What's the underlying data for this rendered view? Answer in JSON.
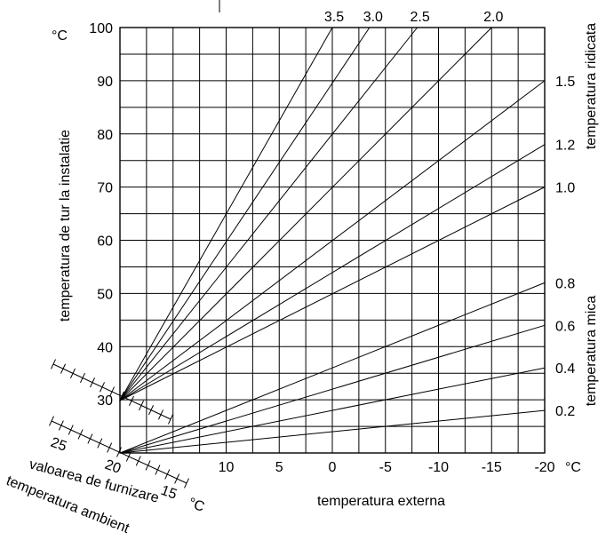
{
  "chart_data": {
    "type": "line",
    "xlabel": "temperatura externa",
    "ylabel": "temperatura de tur la instalatie",
    "x_unit": "°C",
    "y_unit": "°C",
    "x_ticks": [
      10,
      5,
      0,
      -5,
      -10,
      -15,
      -20
    ],
    "y_ticks": [
      30,
      40,
      50,
      60,
      70,
      80,
      90,
      100
    ],
    "x_tick_labels": [
      "10",
      "5",
      "0",
      "-5",
      "-10",
      "-15",
      "-20"
    ],
    "y_tick_labels": [
      "30",
      "40",
      "50",
      "60",
      "70",
      "80",
      "90",
      "100"
    ],
    "xlim": [
      20,
      -20
    ],
    "ylim": [
      20,
      100
    ],
    "grid": true,
    "series": [
      {
        "name": "3.5",
        "points": [
          [
            20,
            20
          ],
          [
            0,
            100
          ]
        ],
        "label_side": "top"
      },
      {
        "name": "3.0",
        "points": [
          [
            20,
            20
          ],
          [
            -3.5,
            100
          ]
        ],
        "label_side": "top"
      },
      {
        "name": "2.5",
        "points": [
          [
            20,
            20
          ],
          [
            -8,
            100
          ]
        ],
        "label_side": "top"
      },
      {
        "name": "2.0",
        "points": [
          [
            20,
            20
          ],
          [
            -15,
            100
          ]
        ],
        "label_side": "top"
      },
      {
        "name": "1.5",
        "points": [
          [
            20,
            20
          ],
          [
            -20,
            90
          ]
        ],
        "label_side": "right"
      },
      {
        "name": "1.2",
        "points": [
          [
            20,
            20
          ],
          [
            -20,
            78
          ]
        ],
        "label_side": "right"
      },
      {
        "name": "1.0",
        "points": [
          [
            20,
            20
          ],
          [
            -20,
            70
          ]
        ],
        "label_side": "right"
      },
      {
        "name": "0.8",
        "points": [
          [
            20,
            20
          ],
          [
            -20,
            52
          ]
        ],
        "label_side": "right"
      },
      {
        "name": "0.6",
        "points": [
          [
            20,
            20
          ],
          [
            -20,
            44
          ]
        ],
        "label_side": "right"
      },
      {
        "name": "0.4",
        "points": [
          [
            20,
            20
          ],
          [
            -20,
            36
          ]
        ],
        "label_side": "right"
      },
      {
        "name": "0.2",
        "points": [
          [
            20,
            20
          ],
          [
            -20,
            28
          ]
        ],
        "label_side": "right"
      }
    ],
    "right_labels": {
      "high": "temperatura ridicata",
      "low": "temperatura mica"
    },
    "ambient_scale": {
      "ticks": [
        "25",
        "20",
        "15"
      ],
      "unit": "°C",
      "label_line1": "valoarea de furnizare",
      "label_line2": "temperatura ambient"
    }
  }
}
